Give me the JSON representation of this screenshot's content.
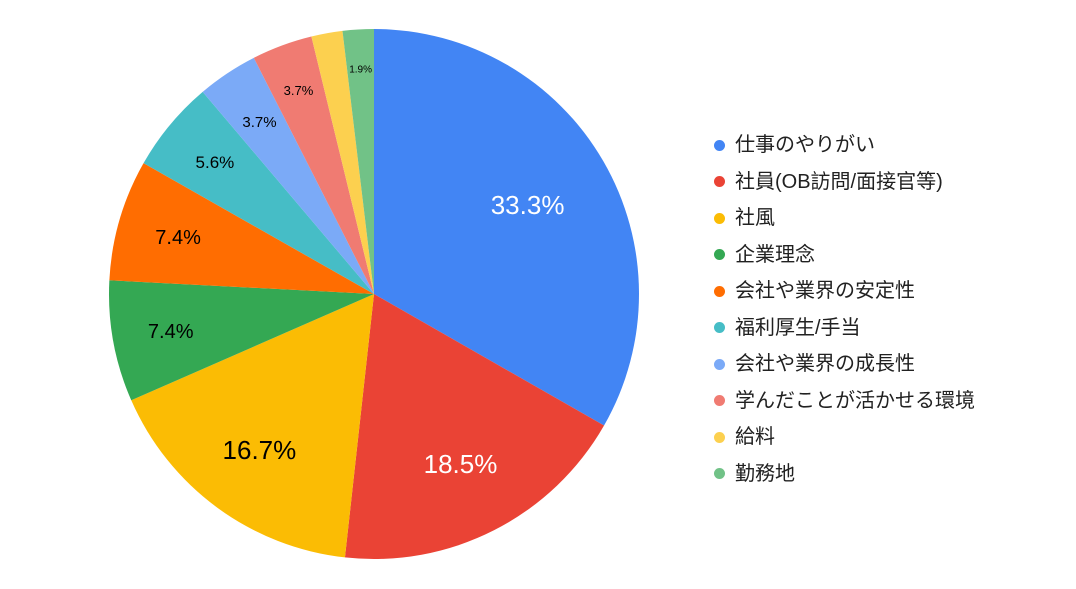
{
  "canvas": {
    "background": "#FFFFFF"
  },
  "chart_data": {
    "type": "pie",
    "title": "",
    "legend_position": "right",
    "direction": "clockwise-from-top",
    "categories": [
      "仕事のやりがい",
      "社員(OB訪問/面接官等)",
      "社風",
      "企業理念",
      "会社や業界の安定性",
      "福利厚生/手当",
      "会社や業界の成長性",
      "学んだことが活かせる環境",
      "給料",
      "勤務地"
    ],
    "values": [
      33.3,
      18.5,
      16.7,
      7.4,
      7.4,
      5.6,
      3.7,
      3.7,
      1.9,
      1.9
    ],
    "slices": [
      {
        "category": "仕事のやりがい",
        "value": 33.3,
        "percent_label": "33.3%",
        "color": "#4285F4",
        "label_color": "#FFFFFF",
        "label_size": 26,
        "label_r": 0.67
      },
      {
        "category": "社員(OB訪問/面接官等)",
        "value": 18.5,
        "percent_label": "18.5%",
        "color": "#EA4335",
        "label_color": "#FFFFFF",
        "label_size": 26,
        "label_r": 0.72
      },
      {
        "category": "社風",
        "value": 16.7,
        "percent_label": "16.7%",
        "color": "#FBBC04",
        "label_color": "#000000",
        "label_size": 26,
        "label_r": 0.73
      },
      {
        "category": "企業理念",
        "value": 7.4,
        "percent_label": "7.4%",
        "color": "#34A853",
        "label_color": "#000000",
        "label_size": 20,
        "label_r": 0.78
      },
      {
        "category": "会社や業界の安定性",
        "value": 7.4,
        "percent_label": "7.4%",
        "color": "#FF6D01",
        "label_color": "#000000",
        "label_size": 20,
        "label_r": 0.77
      },
      {
        "category": "福利厚生/手当",
        "value": 5.6,
        "percent_label": "5.6%",
        "color": "#46BDC6",
        "label_color": "#000000",
        "label_size": 17,
        "label_r": 0.78
      },
      {
        "category": "会社や業界の成長性",
        "value": 3.7,
        "percent_label": "3.7%",
        "color": "#7BAAF7",
        "label_color": "#000000",
        "label_size": 15,
        "label_r": 0.78
      },
      {
        "category": "学んだことが活かせる環境",
        "value": 3.7,
        "percent_label": "3.7%",
        "color": "#F07B72",
        "label_color": "#000000",
        "label_size": 13,
        "label_r": 0.82
      },
      {
        "category": "給料",
        "value": 1.9,
        "percent_label": "",
        "color": "#FCD04F",
        "label_color": "#000000",
        "label_size": 0,
        "label_r": 0
      },
      {
        "category": "勤務地",
        "value": 1.9,
        "percent_label": "1.9%",
        "color": "#71C287",
        "label_color": "#000000",
        "label_size": 10,
        "label_r": 0.85
      }
    ]
  },
  "legend": {
    "text_color": "#212121"
  }
}
